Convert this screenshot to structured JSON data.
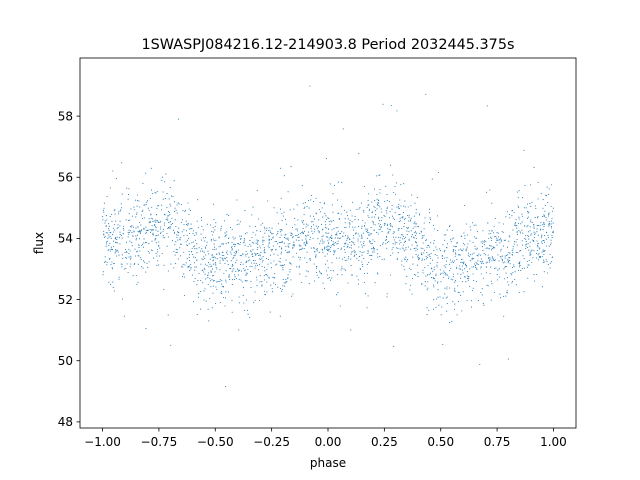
{
  "chart_data": {
    "type": "scatter",
    "title": "1SWASPJ084216.12-214903.8 Period 2032445.375s",
    "xlabel": "phase",
    "ylabel": "flux",
    "xlim": [
      -1.1,
      1.1
    ],
    "ylim": [
      47.8,
      59.9
    ],
    "xticks": [
      -1.0,
      -0.75,
      -0.5,
      -0.25,
      0.0,
      0.25,
      0.5,
      0.75,
      1.0
    ],
    "xtick_labels": [
      "−1.00",
      "−0.75",
      "−0.50",
      "−0.25",
      "0.00",
      "0.25",
      "0.50",
      "0.75",
      "1.00"
    ],
    "yticks": [
      48,
      50,
      52,
      54,
      56,
      58
    ],
    "ytick_labels": [
      "48",
      "50",
      "52",
      "54",
      "56",
      "58"
    ],
    "grid": false,
    "legend": "none",
    "marker_color": "#1f77b4",
    "series": [
      {
        "x_range": [
          -1.0,
          1.0
        ],
        "phase_folded": true,
        "points_mean_profile": {
          "x": [
            -1.0,
            -0.95,
            -0.9,
            -0.85,
            -0.8,
            -0.75,
            -0.7,
            -0.65,
            -0.6,
            -0.55,
            -0.5,
            -0.45,
            -0.4,
            -0.35,
            -0.3,
            -0.25,
            -0.2,
            -0.15,
            -0.1,
            -0.05,
            0.0,
            0.05,
            0.1,
            0.15,
            0.2,
            0.25,
            0.3,
            0.35,
            0.4,
            0.45,
            0.5,
            0.55,
            0.6,
            0.65,
            0.7,
            0.75,
            0.8,
            0.85,
            0.9,
            0.95,
            1.0
          ],
          "y": [
            54.2,
            53.9,
            53.8,
            54.0,
            54.1,
            54.4,
            54.5,
            54.0,
            53.6,
            53.3,
            53.2,
            53.1,
            53.3,
            53.2,
            53.4,
            53.5,
            53.7,
            53.8,
            54.0,
            54.0,
            54.1,
            53.9,
            53.8,
            54.0,
            54.2,
            54.4,
            54.5,
            54.0,
            53.6,
            53.3,
            53.2,
            53.1,
            53.3,
            53.2,
            53.4,
            53.5,
            53.7,
            53.8,
            54.0,
            54.0,
            54.1
          ]
        },
        "scatter_sd": 0.7
      }
    ]
  }
}
